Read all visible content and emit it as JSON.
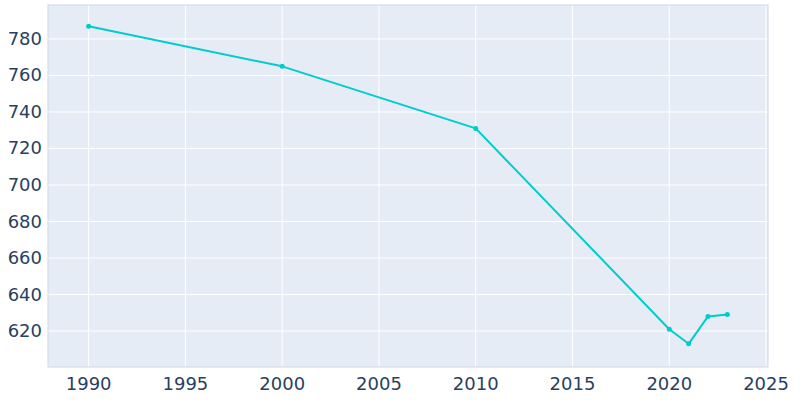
{
  "chart_data": {
    "type": "line",
    "x": [
      1990,
      2000,
      2010,
      2020,
      2021,
      2022,
      2023
    ],
    "values": [
      787,
      765,
      731,
      621,
      613,
      628,
      629
    ],
    "color": "#00cccc",
    "marker": "circle",
    "xlim": [
      1987.9,
      2025.1
    ],
    "xticks": [
      1990,
      1995,
      2000,
      2005,
      2010,
      2015,
      2020,
      2025
    ],
    "ylim": [
      600.3,
      798.6
    ],
    "yticks": [
      620,
      640,
      660,
      680,
      700,
      720,
      740,
      760,
      780
    ],
    "grid": true
  }
}
